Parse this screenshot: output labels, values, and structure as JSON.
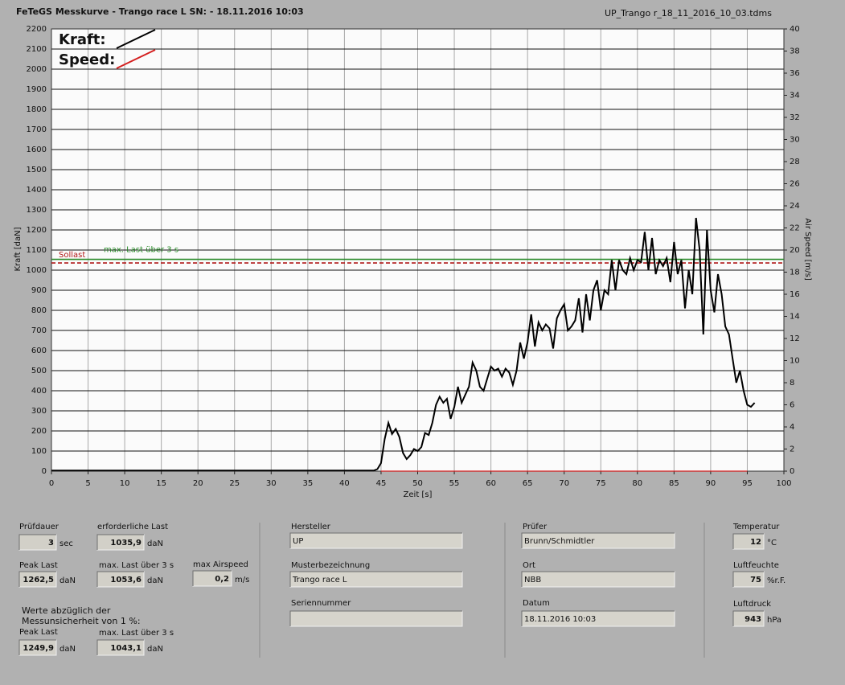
{
  "header": {
    "title": "FeTeGS Messkurve - Trango race L  SN:  - 18.11.2016 10:03",
    "file": "UP_Trango r_18_11_2016_10_03.tdms"
  },
  "chart_data": {
    "type": "line",
    "xlabel": "Zeit [s]",
    "ylabel": "Kraft [daN]",
    "y2label": "Air Speed [m/s]",
    "xlim": [
      0,
      100
    ],
    "xticks": [
      0,
      5,
      10,
      15,
      20,
      25,
      30,
      35,
      40,
      45,
      50,
      55,
      60,
      65,
      70,
      75,
      80,
      85,
      90,
      95,
      100
    ],
    "ylim": [
      0,
      2200
    ],
    "yticks": [
      0,
      100,
      200,
      300,
      400,
      500,
      600,
      700,
      800,
      900,
      1000,
      1100,
      1200,
      1300,
      1400,
      1500,
      1600,
      1700,
      1800,
      1900,
      2000,
      2100,
      2200
    ],
    "y2lim": [
      0,
      40
    ],
    "y2ticks": [
      0,
      2,
      4,
      6,
      8,
      10,
      12,
      14,
      16,
      18,
      20,
      22,
      24,
      26,
      28,
      30,
      32,
      34,
      36,
      38,
      40
    ],
    "grid": true,
    "legend": "top-left",
    "series": [
      {
        "name": "Kraft:",
        "color": "#000000",
        "x": [
          0,
          44,
          44.5,
          45,
          45.5,
          46,
          46.5,
          47,
          47.5,
          48,
          48.5,
          49,
          49.5,
          50,
          50.5,
          51,
          51.5,
          52,
          52.5,
          53,
          53.5,
          54,
          54.5,
          55,
          55.5,
          56,
          56.5,
          57,
          57.5,
          58,
          58.5,
          59,
          59.5,
          60,
          60.5,
          61,
          61.5,
          62,
          62.5,
          63,
          63.5,
          64,
          64.5,
          65,
          65.5,
          66,
          66.5,
          67,
          67.5,
          68,
          68.5,
          69,
          69.5,
          70,
          70.5,
          71,
          71.5,
          72,
          72.5,
          73,
          73.5,
          74,
          74.5,
          75,
          75.5,
          76,
          76.5,
          77,
          77.5,
          78,
          78.5,
          79,
          79.5,
          80,
          80.5,
          81,
          81.5,
          82,
          82.5,
          83,
          83.5,
          84,
          84.5,
          85,
          85.5,
          86,
          86.5,
          87,
          87.5,
          88,
          88.5,
          89,
          89.5,
          90,
          90.5,
          91,
          91.5,
          92,
          92.5,
          93,
          93.5,
          94,
          94.5,
          95,
          95.5,
          96
        ],
        "values": [
          3,
          3,
          10,
          40,
          160,
          240,
          185,
          210,
          170,
          90,
          60,
          80,
          110,
          100,
          120,
          190,
          180,
          240,
          330,
          370,
          340,
          360,
          260,
          320,
          420,
          340,
          380,
          420,
          540,
          500,
          420,
          400,
          460,
          520,
          500,
          510,
          470,
          510,
          490,
          430,
          500,
          640,
          560,
          640,
          780,
          620,
          740,
          700,
          730,
          710,
          610,
          760,
          800,
          830,
          700,
          720,
          750,
          860,
          690,
          880,
          750,
          900,
          950,
          800,
          900,
          880,
          1050,
          900,
          1050,
          1000,
          980,
          1060,
          1000,
          1050,
          1040,
          1190,
          1000,
          1160,
          980,
          1050,
          1020,
          1060,
          940,
          1140,
          980,
          1050,
          810,
          1000,
          880,
          1260,
          1100,
          680,
          1200,
          900,
          790,
          980,
          880,
          720,
          680,
          560,
          440,
          500,
          400,
          330,
          320,
          340
        ]
      },
      {
        "name": "Speed:",
        "color": "#d42020",
        "axis": "y2",
        "x": [
          45,
          95
        ],
        "values": [
          0,
          0
        ]
      }
    ],
    "reference_lines": [
      {
        "name": "Sollast",
        "value": 1035.9,
        "color": "#b01818",
        "dashed": true
      },
      {
        "name": "max. Last über  3 s",
        "value": 1053.6,
        "color": "#2a8a2a",
        "dashed": false
      }
    ]
  },
  "fields": [
    {
      "label": "Prüfdauer",
      "value": 3,
      "unit": "sec"
    },
    {
      "label": "erforderliche Last",
      "value": "1035,9",
      "unit": "daN"
    },
    {
      "label": "Peak Last",
      "value": "1262,5",
      "unit": "daN"
    },
    {
      "label": "max. Last über  3 s",
      "value": "1053,6",
      "unit": "daN"
    },
    {
      "label": "max Airspeed",
      "value": "0,2",
      "unit": "m/s"
    },
    {
      "label": "Peak Last",
      "value": "1249,9",
      "unit": "daN"
    },
    {
      "label": "max. Last über  3 s",
      "value": "1043,1",
      "unit": "daN"
    },
    {
      "label": "Hersteller",
      "value": "UP"
    },
    {
      "label": "Musterbezeichnung",
      "value": "Trango race L"
    },
    {
      "label": "Seriennummer"
    },
    {
      "label": "Prüfer",
      "value": "Brunn/Schmidtler"
    },
    {
      "label": "Ort",
      "value": "NBB"
    },
    {
      "label": "Datum",
      "value": "18.11.2016 10:03"
    },
    {
      "label": "Temperatur",
      "value": 12,
      "unit": "°C"
    },
    {
      "label": "Luftfeuchte",
      "value": 75,
      "unit": "%r.F."
    },
    {
      "label": "Luftdruck",
      "value": 943,
      "unit": "hPa"
    }
  ],
  "note": [
    "Werte abzüglich der",
    "Messunsicherheit von 1  %:"
  ]
}
